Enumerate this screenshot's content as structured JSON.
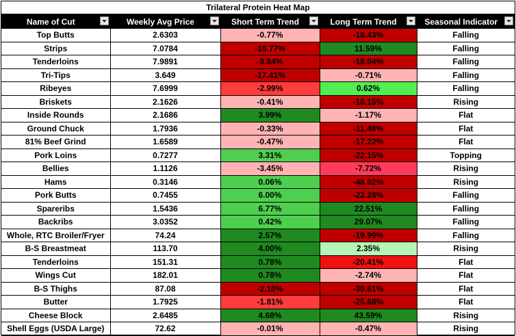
{
  "title": "Trilateral Protein Heat Map",
  "headers": {
    "name": "Name of Cut",
    "price": "Weekly Avg Price",
    "short": "Short Term Trend",
    "long": "Long Term Trend",
    "seasonal": "Seasonal Indicator"
  },
  "filter_icon": "dropdown-arrow-icon",
  "colors": {
    "dark_red": "#c00000",
    "red": "#ff3b3b",
    "light_red": "#ffb3b3",
    "dark_green": "#1f8a1f",
    "green": "#4fcf4f",
    "light_green": "#b5f5b5"
  },
  "rows": [
    {
      "name": "Top Butts",
      "price": "2.6303",
      "short": "-0.77%",
      "short_color": "#ffb3b3",
      "long": "-18.43%",
      "long_color": "#c00000",
      "seasonal": "Falling"
    },
    {
      "name": "Strips",
      "price": "7.0784",
      "short": "-10.77%",
      "short_color": "#c00000",
      "long": "11.59%",
      "long_color": "#1f8a1f",
      "seasonal": "Falling"
    },
    {
      "name": "Tenderloins",
      "price": "7.9891",
      "short": "-9.84%",
      "short_color": "#c00000",
      "long": "-18.04%",
      "long_color": "#c00000",
      "seasonal": "Falling"
    },
    {
      "name": "Tri-Tips",
      "price": "3.649",
      "short": "-17.41%",
      "short_color": "#c00000",
      "long": "-0.71%",
      "long_color": "#ffb3b3",
      "seasonal": "Falling"
    },
    {
      "name": "Ribeyes",
      "price": "7.6999",
      "short": "-2.99%",
      "short_color": "#ff3b3b",
      "long": "0.62%",
      "long_color": "#4fef4f",
      "seasonal": "Falling"
    },
    {
      "name": "Briskets",
      "price": "2.1626",
      "short": "-0.41%",
      "short_color": "#ffb3b3",
      "long": "-18.15%",
      "long_color": "#c00000",
      "seasonal": "Rising"
    },
    {
      "name": "Inside Rounds",
      "price": "2.1686",
      "short": "3.99%",
      "short_color": "#1f8a1f",
      "long": "-1.17%",
      "long_color": "#ffb3b3",
      "seasonal": "Flat"
    },
    {
      "name": "Ground Chuck",
      "price": "1.7936",
      "short": "-0.33%",
      "short_color": "#ffb3b3",
      "long": "-11.48%",
      "long_color": "#c00000",
      "seasonal": "Flat"
    },
    {
      "name": "81% Beef Grind",
      "price": "1.6589",
      "short": "-0.47%",
      "short_color": "#ffb3b3",
      "long": "-17.22%",
      "long_color": "#c00000",
      "seasonal": "Flat"
    },
    {
      "name": "Pork Loins",
      "price": "0.7277",
      "short": "3.31%",
      "short_color": "#4fcf4f",
      "long": "-22.15%",
      "long_color": "#c00000",
      "seasonal": "Topping"
    },
    {
      "name": "Bellies",
      "price": "1.1126",
      "short": "-3.45%",
      "short_color": "#ffb3b3",
      "long": "-7.72%",
      "long_color": "#ff3b5b",
      "seasonal": "Rising"
    },
    {
      "name": "Hams",
      "price": "0.3146",
      "short": "0.06%",
      "short_color": "#4fcf4f",
      "long": "-48.02%",
      "long_color": "#c00000",
      "seasonal": "Rising"
    },
    {
      "name": "Pork Butts",
      "price": "0.7455",
      "short": "6.00%",
      "short_color": "#4fcf4f",
      "long": "-22.28%",
      "long_color": "#c00000",
      "seasonal": "Falling"
    },
    {
      "name": "Spareribs",
      "price": "1.5436",
      "short": "6.77%",
      "short_color": "#4fcf4f",
      "long": "22.51%",
      "long_color": "#1f8a1f",
      "seasonal": "Falling"
    },
    {
      "name": "Backribs",
      "price": "3.0352",
      "short": "0.42%",
      "short_color": "#4fcf4f",
      "long": "29.07%",
      "long_color": "#1f8a1f",
      "seasonal": "Falling"
    },
    {
      "name": "Whole, RTC Broiler/Fryer",
      "price": "74.24",
      "short": "2.57%",
      "short_color": "#1f8a1f",
      "long": "-19.99%",
      "long_color": "#c00000",
      "seasonal": "Falling"
    },
    {
      "name": "B-S Breastmeat",
      "price": "113.70",
      "short": "4.00%",
      "short_color": "#1f8a1f",
      "long": "2.35%",
      "long_color": "#b5f5b5",
      "seasonal": "Rising"
    },
    {
      "name": "Tenderloins",
      "price": "151.31",
      "short": "0.78%",
      "short_color": "#1f8a1f",
      "long": "-20.41%",
      "long_color": "#ee1111",
      "seasonal": "Flat"
    },
    {
      "name": "Wings Cut",
      "price": "182.01",
      "short": "0.78%",
      "short_color": "#1f8a1f",
      "long": "-2.74%",
      "long_color": "#ffb3b3",
      "seasonal": "Flat"
    },
    {
      "name": "B-S Thighs",
      "price": "87.08",
      "short": "-2.10%",
      "short_color": "#c00000",
      "long": "-30.61%",
      "long_color": "#c00000",
      "seasonal": "Flat"
    },
    {
      "name": "Butter",
      "price": "1.7925",
      "short": "-1.81%",
      "short_color": "#ff3b3b",
      "long": "-25.68%",
      "long_color": "#c00000",
      "seasonal": "Flat"
    },
    {
      "name": "Cheese Block",
      "price": "2.6485",
      "short": "4.68%",
      "short_color": "#1f8a1f",
      "long": "43.59%",
      "long_color": "#1f8a1f",
      "seasonal": "Rising"
    },
    {
      "name": "Shell Eggs (USDA Large)",
      "price": "72.62",
      "short": "-0.01%",
      "short_color": "#ffb3b3",
      "long": "-0.47%",
      "long_color": "#ffb3b3",
      "seasonal": "Rising"
    }
  ]
}
